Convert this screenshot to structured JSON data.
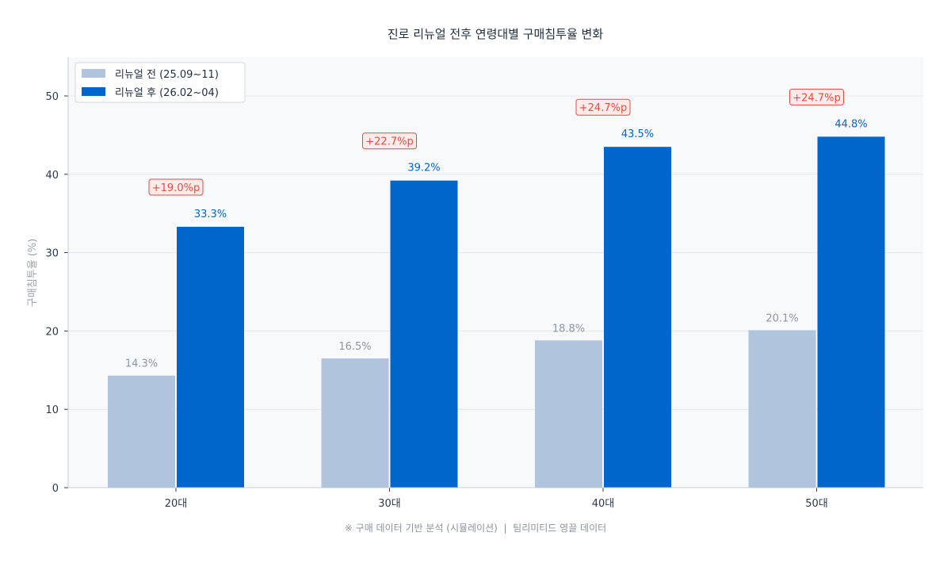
{
  "chart_data": {
    "type": "bar",
    "title": "진로 리뉴얼 전후 연령대별 구매침투율 변화",
    "ylabel": "구매침투율 (%)",
    "xlabel": "",
    "ylim": [
      0,
      55
    ],
    "yticks": [
      0,
      10,
      20,
      30,
      40,
      50
    ],
    "categories": [
      "20대",
      "30대",
      "40대",
      "50대"
    ],
    "series": [
      {
        "name": "리뉴얼 전 (25.09~11)",
        "values": [
          14.3,
          16.5,
          18.8,
          20.1
        ],
        "labels": [
          "14.3%",
          "16.5%",
          "18.8%",
          "20.1%"
        ],
        "color": "#b0c4de"
      },
      {
        "name": "리뉴얼 후 (26.02~04)",
        "values": [
          33.3,
          39.2,
          43.5,
          44.8
        ],
        "labels": [
          "33.3%",
          "39.2%",
          "43.5%",
          "44.8%"
        ],
        "color": "#0066cc"
      }
    ],
    "annotations": [
      "+19.0%p",
      "+22.7%p",
      "+24.7%p",
      "+24.7%p"
    ],
    "grid": true,
    "legend": "top-left",
    "footnote": "※ 구매 데이터 기반 분석 (시뮬레이션)  |  팀리미티드 영끌 데이터"
  }
}
